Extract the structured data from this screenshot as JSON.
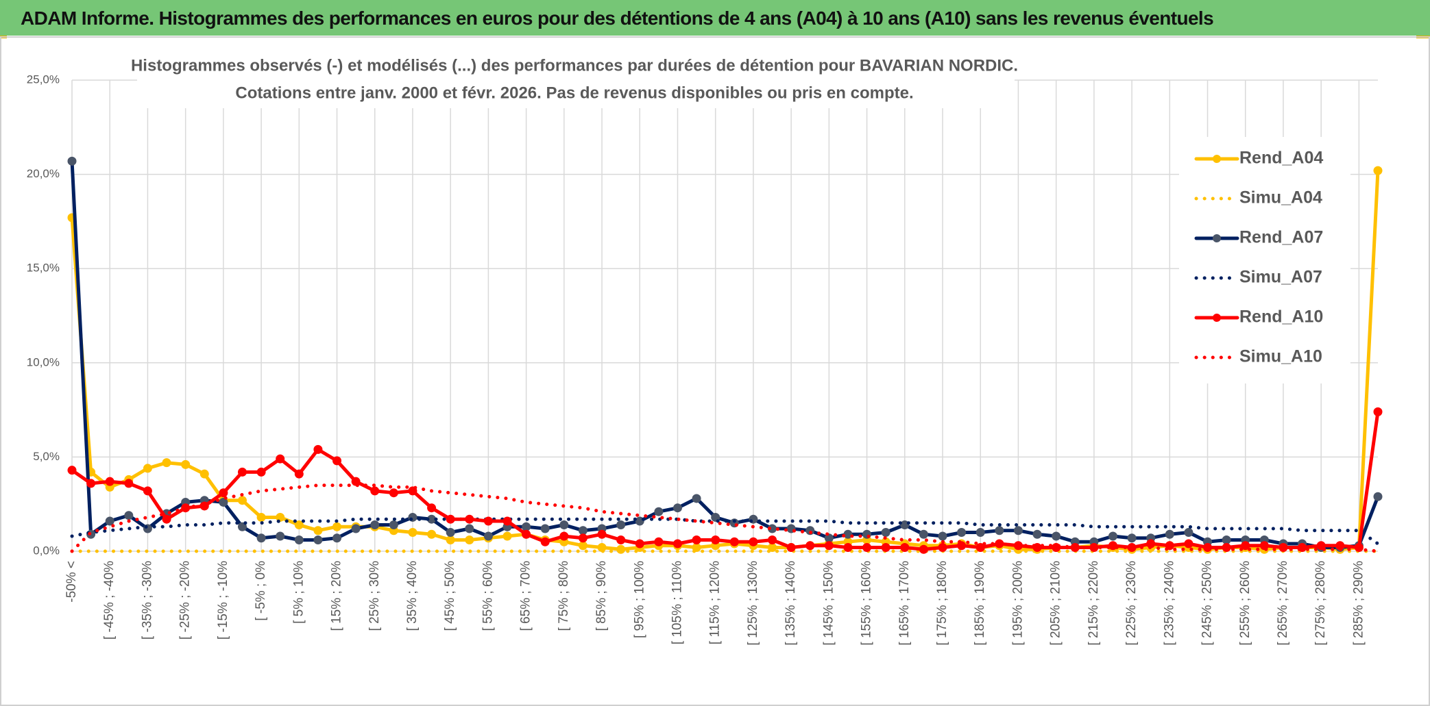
{
  "title": "ADAM Informe. Histogrammes des performances en euros pour des détentions de 4 ans (A04) à 10 ans (A10) sans les revenus éventuels",
  "chart_data": {
    "type": "line",
    "subtitle": [
      "Histogrammes observés (-) et modélisés (...) des performances par durées de détention pour BAVARIAN NORDIC.",
      "Cotations entre janv. 2000 et févr. 2026. Pas de revenus disponibles ou pris en compte."
    ],
    "categories": [
      "-50% <",
      null,
      "[ -45% ; -40%",
      null,
      "[ -35% ; -30%",
      null,
      "[ -25% ; -20%",
      null,
      "[ -15% ; -10%",
      null,
      "[ -5% ; 0%",
      null,
      "[ 5% ; 10%",
      null,
      "[ 15% ; 20%",
      null,
      "[ 25% ; 30%",
      null,
      "[ 35% ; 40%",
      null,
      "[ 45% ; 50%",
      null,
      "[ 55% ; 60%",
      null,
      "[ 65% ; 70%",
      null,
      "[ 75% ; 80%",
      null,
      "[ 85% ; 90%",
      null,
      "[ 95% ; 100%",
      null,
      "[ 105% ; 110%",
      null,
      "[ 115% ; 120%",
      null,
      "[ 125% ; 130%",
      null,
      "[ 135% ; 140%",
      null,
      "[ 145% ; 150%",
      null,
      "[ 155% ; 160%",
      null,
      "[ 165% ; 170%",
      null,
      "[ 175% ; 180%",
      null,
      "[ 185% ; 190%",
      null,
      "[ 195% ; 200%",
      null,
      "[ 205% ; 210%",
      null,
      "[ 215% ; 220%",
      null,
      "[ 225% ; 230%",
      null,
      "[ 235% ; 240%",
      null,
      "[ 245% ; 250%",
      null,
      "[ 255% ; 260%",
      null,
      "[ 265% ; 270%",
      null,
      "[ 275% ; 280%",
      null,
      "[ 285% ; 290%",
      null
    ],
    "series": [
      {
        "name": "Rend_A04",
        "color": "#FFC000",
        "style": "solid",
        "markers": true,
        "values": [
          17.7,
          4.2,
          3.4,
          3.8,
          4.4,
          4.7,
          4.6,
          4.1,
          2.7,
          2.7,
          1.8,
          1.8,
          1.4,
          1.1,
          1.3,
          1.3,
          1.3,
          1.1,
          1.0,
          0.9,
          0.6,
          0.6,
          0.7,
          0.8,
          0.9,
          0.6,
          0.5,
          0.3,
          0.2,
          0.1,
          0.2,
          0.3,
          0.3,
          0.2,
          0.3,
          0.4,
          0.3,
          0.2,
          0.2,
          0.3,
          0.4,
          0.5,
          0.6,
          0.5,
          0.4,
          0.3,
          0.3,
          0.4,
          0.2,
          0.3,
          0.1,
          0.1,
          0.2,
          0.2,
          0.3,
          0.2,
          0.1,
          0.2,
          0.3,
          0.2,
          0.1,
          0.2,
          0.2,
          0.1,
          0.2,
          0.2,
          0.2,
          0.1,
          0.2,
          20.2
        ]
      },
      {
        "name": "Simu_A04",
        "color": "#FFC000",
        "style": "dotted",
        "markers": false,
        "values": [
          0,
          0,
          0,
          0,
          0,
          0,
          0,
          0,
          0,
          0,
          0,
          0,
          0,
          0,
          0,
          0,
          0,
          0,
          0,
          0,
          0,
          0,
          0,
          0,
          0,
          0,
          0,
          0,
          0,
          0,
          0,
          0,
          0,
          0,
          0,
          0,
          0,
          0,
          0,
          0,
          0,
          0,
          0,
          0,
          0,
          0,
          0,
          0,
          0,
          0,
          0,
          0,
          0,
          0,
          0,
          0,
          0,
          0,
          0,
          0,
          0,
          0,
          0,
          0,
          0,
          0,
          0,
          0,
          0,
          0
        ]
      },
      {
        "name": "Rend_A07",
        "color": "#002060",
        "style": "solid",
        "markers": true,
        "values": [
          20.7,
          0.9,
          1.6,
          1.9,
          1.2,
          2.0,
          2.6,
          2.7,
          2.6,
          1.3,
          0.7,
          0.8,
          0.6,
          0.6,
          0.7,
          1.2,
          1.4,
          1.4,
          1.8,
          1.7,
          1.0,
          1.2,
          0.8,
          1.3,
          1.3,
          1.2,
          1.4,
          1.1,
          1.2,
          1.4,
          1.6,
          2.1,
          2.3,
          2.8,
          1.8,
          1.5,
          1.7,
          1.2,
          1.2,
          1.1,
          0.7,
          0.9,
          0.9,
          1.0,
          1.4,
          0.9,
          0.8,
          1.0,
          1.0,
          1.1,
          1.1,
          0.9,
          0.8,
          0.5,
          0.5,
          0.8,
          0.7,
          0.7,
          0.9,
          1.0,
          0.5,
          0.6,
          0.6,
          0.6,
          0.4,
          0.4,
          0.2,
          0.2,
          0.3,
          2.9
        ]
      },
      {
        "name": "Simu_A07",
        "color": "#002060",
        "style": "dotted",
        "markers": false,
        "values": [
          0.8,
          1.0,
          1.1,
          1.2,
          1.3,
          1.3,
          1.4,
          1.4,
          1.5,
          1.5,
          1.5,
          1.6,
          1.6,
          1.6,
          1.6,
          1.7,
          1.7,
          1.7,
          1.7,
          1.7,
          1.7,
          1.7,
          1.7,
          1.7,
          1.7,
          1.7,
          1.7,
          1.7,
          1.7,
          1.7,
          1.7,
          1.7,
          1.7,
          1.6,
          1.6,
          1.6,
          1.6,
          1.6,
          1.6,
          1.6,
          1.6,
          1.5,
          1.5,
          1.5,
          1.5,
          1.5,
          1.5,
          1.5,
          1.4,
          1.4,
          1.4,
          1.4,
          1.4,
          1.4,
          1.3,
          1.3,
          1.3,
          1.3,
          1.3,
          1.3,
          1.2,
          1.2,
          1.2,
          1.2,
          1.2,
          1.1,
          1.1,
          1.1,
          1.1,
          0.4
        ]
      },
      {
        "name": "Rend_A10",
        "color": "#FF0000",
        "style": "solid",
        "markers": true,
        "values": [
          4.3,
          3.6,
          3.7,
          3.6,
          3.2,
          1.7,
          2.3,
          2.4,
          3.1,
          4.2,
          4.2,
          4.9,
          4.1,
          5.4,
          4.8,
          3.7,
          3.2,
          3.1,
          3.2,
          2.3,
          1.7,
          1.7,
          1.6,
          1.6,
          0.9,
          0.5,
          0.8,
          0.7,
          0.9,
          0.6,
          0.4,
          0.5,
          0.4,
          0.6,
          0.6,
          0.5,
          0.5,
          0.6,
          0.2,
          0.3,
          0.3,
          0.2,
          0.2,
          0.2,
          0.2,
          0.1,
          0.2,
          0.3,
          0.2,
          0.4,
          0.3,
          0.2,
          0.2,
          0.2,
          0.2,
          0.3,
          0.2,
          0.4,
          0.3,
          0.4,
          0.2,
          0.2,
          0.3,
          0.3,
          0.2,
          0.2,
          0.3,
          0.3,
          0.2,
          7.4
        ]
      },
      {
        "name": "Simu_A10",
        "color": "#FF0000",
        "style": "dotted",
        "markers": false,
        "values": [
          0.0,
          1.0,
          1.3,
          1.6,
          1.8,
          2.0,
          2.3,
          2.5,
          2.8,
          3.0,
          3.2,
          3.3,
          3.4,
          3.5,
          3.5,
          3.5,
          3.5,
          3.4,
          3.4,
          3.2,
          3.1,
          3.0,
          2.9,
          2.8,
          2.6,
          2.5,
          2.4,
          2.3,
          2.1,
          2.0,
          1.9,
          1.8,
          1.7,
          1.6,
          1.5,
          1.4,
          1.3,
          1.2,
          1.1,
          1.0,
          0.9,
          0.8,
          0.8,
          0.7,
          0.6,
          0.6,
          0.5,
          0.5,
          0.4,
          0.4,
          0.3,
          0.3,
          0.3,
          0.2,
          0.2,
          0.2,
          0.2,
          0.2,
          0.1,
          0.1,
          0.1,
          0.1,
          0.1,
          0.1,
          0.1,
          0.1,
          0.1,
          0.1,
          0.1,
          0.0
        ]
      }
    ],
    "ylim": [
      0,
      25
    ],
    "yticks": [
      {
        "value": 0,
        "label": "0,0%"
      },
      {
        "value": 5,
        "label": "5,0%"
      },
      {
        "value": 10,
        "label": "10,0%"
      },
      {
        "value": 15,
        "label": "15,0%"
      },
      {
        "value": 20,
        "label": "20,0%"
      },
      {
        "value": 25,
        "label": "25,0%"
      }
    ],
    "grid": true,
    "legend": "right"
  }
}
